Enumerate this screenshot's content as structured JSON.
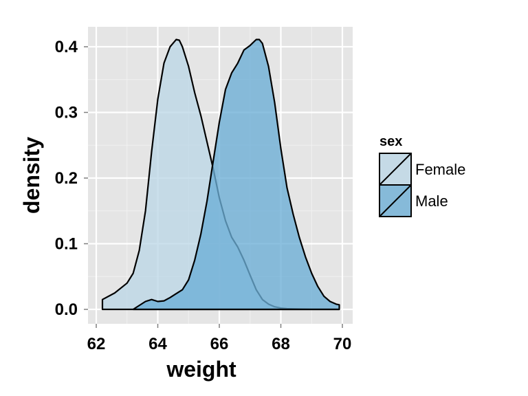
{
  "chart_data": {
    "type": "area",
    "subtype": "density",
    "xlabel": "weight",
    "ylabel": "density",
    "xlim": [
      62,
      70
    ],
    "ylim": [
      0,
      0.4
    ],
    "x_ticks": [
      "62",
      "64",
      "66",
      "68",
      "70"
    ],
    "y_ticks": [
      "0.0",
      "0.1",
      "0.2",
      "0.3",
      "0.4"
    ],
    "grid": true,
    "legend": {
      "title": "sex",
      "position": "right"
    },
    "series": [
      {
        "name": "Female",
        "color": "#bdd7e7",
        "x": [
          62.2,
          62.6,
          63.0,
          63.2,
          63.4,
          63.6,
          63.8,
          64.0,
          64.2,
          64.4,
          64.6,
          64.7,
          64.8,
          65.0,
          65.2,
          65.4,
          65.6,
          65.8,
          66.0,
          66.2,
          66.4,
          66.6,
          66.8,
          67.0,
          67.2,
          67.4,
          67.6,
          67.8,
          68.0,
          68.2,
          68.6,
          69.0,
          69.4,
          69.9
        ],
        "y": [
          0.015,
          0.025,
          0.04,
          0.055,
          0.09,
          0.15,
          0.24,
          0.32,
          0.375,
          0.4,
          0.411,
          0.41,
          0.4,
          0.37,
          0.33,
          0.295,
          0.255,
          0.215,
          0.17,
          0.135,
          0.11,
          0.095,
          0.075,
          0.052,
          0.03,
          0.015,
          0.008,
          0.004,
          0.002,
          0.001,
          0.0005,
          0.0002,
          0.0001,
          0.0
        ]
      },
      {
        "name": "Male",
        "color": "#6baed6",
        "x": [
          63.2,
          63.6,
          63.8,
          64.0,
          64.2,
          64.4,
          64.8,
          65.0,
          65.2,
          65.4,
          65.6,
          65.8,
          66.0,
          66.2,
          66.4,
          66.6,
          66.8,
          67.0,
          67.2,
          67.3,
          67.4,
          67.6,
          67.8,
          68.0,
          68.2,
          68.4,
          68.6,
          68.8,
          69.0,
          69.2,
          69.4,
          69.6,
          69.8,
          69.9
        ],
        "y": [
          0.0,
          0.012,
          0.015,
          0.012,
          0.013,
          0.018,
          0.03,
          0.045,
          0.075,
          0.115,
          0.165,
          0.225,
          0.285,
          0.335,
          0.36,
          0.375,
          0.395,
          0.402,
          0.411,
          0.411,
          0.405,
          0.37,
          0.315,
          0.245,
          0.185,
          0.145,
          0.11,
          0.08,
          0.055,
          0.035,
          0.02,
          0.012,
          0.008,
          0.007
        ]
      }
    ]
  }
}
